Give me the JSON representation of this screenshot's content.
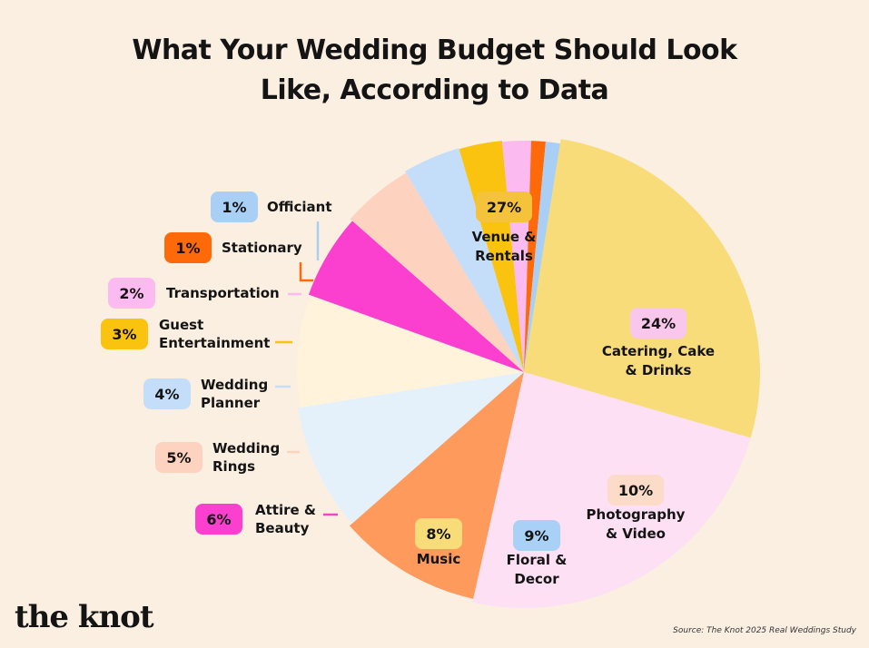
{
  "title_lines": [
    "What Your Wedding Budget Should Look",
    "Like, According to Data"
  ],
  "logo": "the knot",
  "source": "Source: The Knot 2025 Real Weddings Study",
  "chart_data": {
    "type": "pie",
    "title": "What Your Wedding Budget Should Look Like, According to Data",
    "unit": "%",
    "slices": [
      {
        "label_lines": [
          "Venue &",
          "Rentals"
        ],
        "value": 27,
        "value_label": "27%",
        "color": "#f8dc7a",
        "badge_color": "#f5c33b"
      },
      {
        "label_lines": [
          "Catering, Cake",
          "& Drinks"
        ],
        "value": 24,
        "value_label": "24%",
        "color": "#fde0f4",
        "badge_color": "#f9c6ec"
      },
      {
        "label_lines": [
          "Photography",
          "& Video"
        ],
        "value": 10,
        "value_label": "10%",
        "color": "#fe9a5c",
        "badge_color": "#fcdcc8"
      },
      {
        "label_lines": [
          "Floral &",
          "Decor"
        ],
        "value": 9,
        "value_label": "9%",
        "color": "#e4f1fb",
        "badge_color": "#a8d1f5"
      },
      {
        "label_lines": [
          "Music"
        ],
        "value": 8,
        "value_label": "8%",
        "color": "#fff3dc",
        "badge_color": "#f8dc7a"
      },
      {
        "label_lines": [
          "Attire &",
          "Beauty"
        ],
        "value": 6,
        "value_label": "6%",
        "color": "#fb3fcf",
        "badge_color": "#fb3fcf"
      },
      {
        "label_lines": [
          "Wedding",
          "Rings"
        ],
        "value": 5,
        "value_label": "5%",
        "color": "#fdd2bf",
        "badge_color": "#fdd2bf"
      },
      {
        "label_lines": [
          "Wedding",
          "Planner"
        ],
        "value": 4,
        "value_label": "4%",
        "color": "#c4defa",
        "badge_color": "#c4defa"
      },
      {
        "label_lines": [
          "Guest",
          "Entertainment"
        ],
        "value": 3,
        "value_label": "3%",
        "color": "#fac30f",
        "badge_color": "#fac30f"
      },
      {
        "label_lines": [
          "Transportation"
        ],
        "value": 2,
        "value_label": "2%",
        "color": "#fcbbf0",
        "badge_color": "#fcbbf0"
      },
      {
        "label_lines": [
          "Stationary"
        ],
        "value": 1,
        "value_label": "1%",
        "color": "#fe6a0a",
        "badge_color": "#fe6a0a"
      },
      {
        "label_lines": [
          "Officiant"
        ],
        "value": 1,
        "value_label": "1%",
        "color": "#a9cff4",
        "badge_color": "#a9cff4"
      }
    ]
  }
}
